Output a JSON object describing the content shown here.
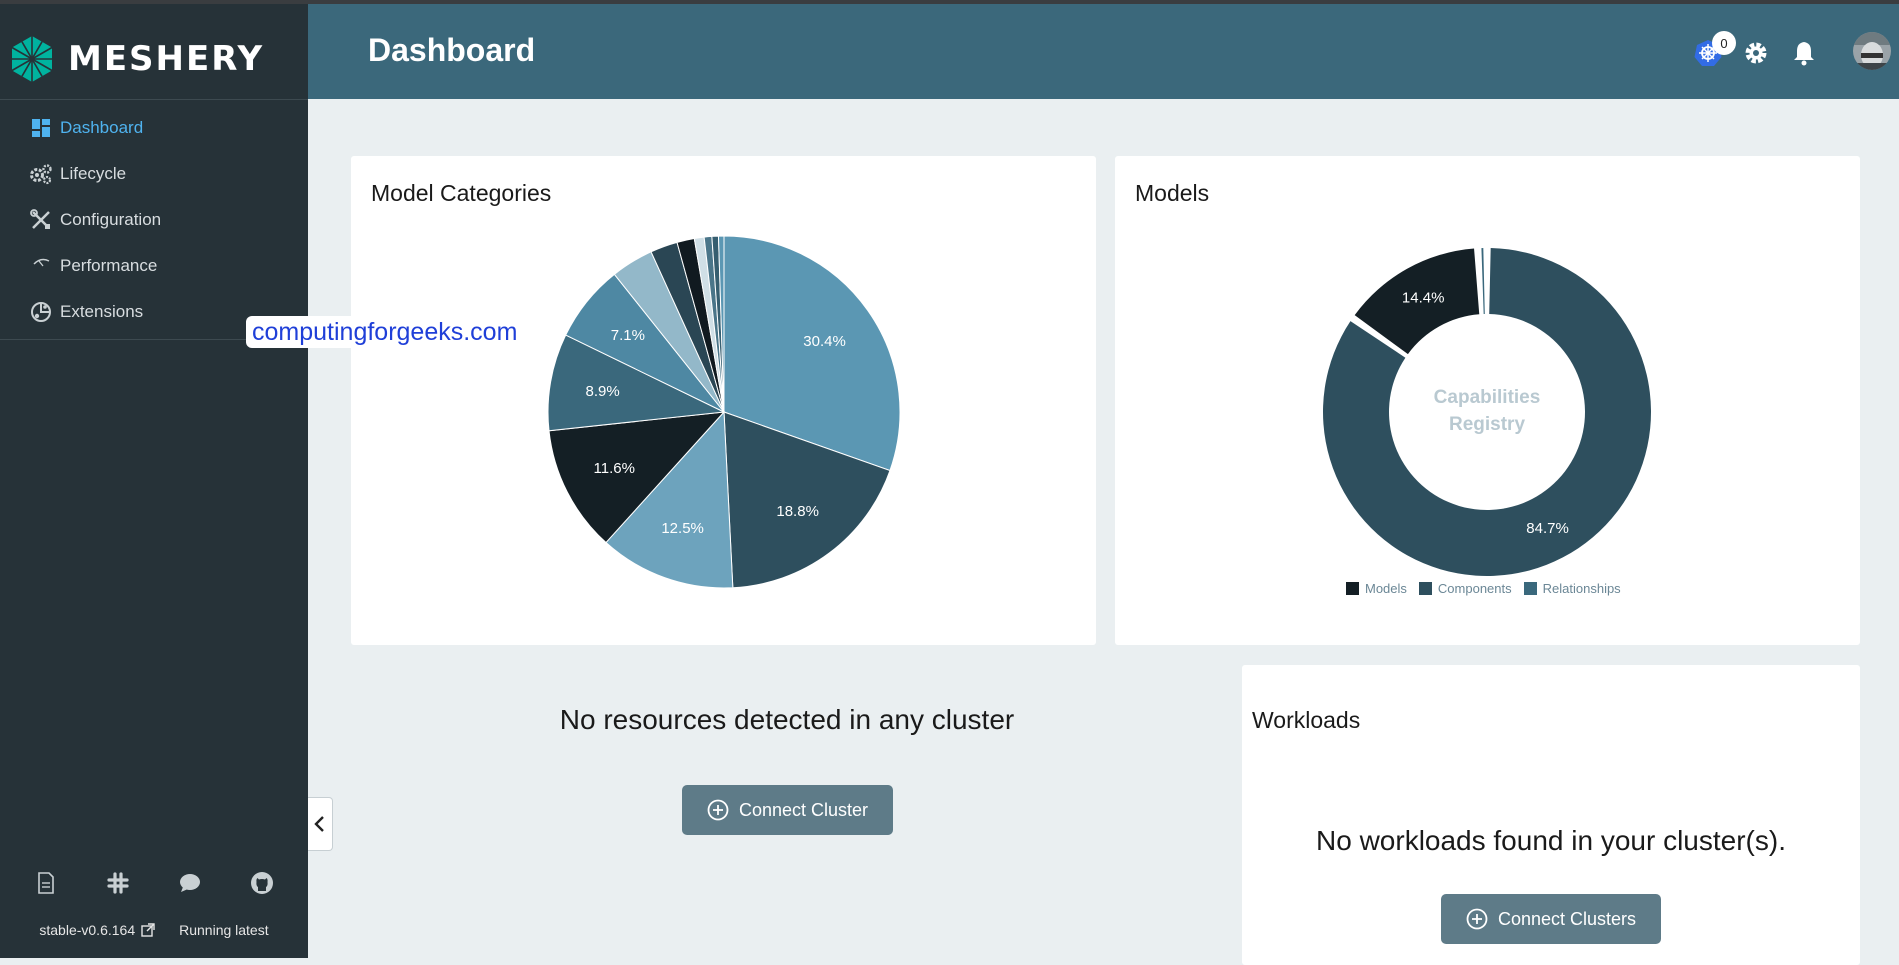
{
  "app": {
    "name": "MESHERY"
  },
  "colors": {
    "sidebar_bg": "#263238",
    "header_bg": "#3b687b",
    "accent": "#4fb3ef",
    "page_bg": "#eaeff1",
    "button": "#5e7b88"
  },
  "sidebar": {
    "items": [
      {
        "label": "Dashboard",
        "icon": "dashboard-icon",
        "active": true
      },
      {
        "label": "Lifecycle",
        "icon": "gears-icon",
        "active": false
      },
      {
        "label": "Configuration",
        "icon": "tools-icon",
        "active": false
      },
      {
        "label": "Performance",
        "icon": "gauge-icon",
        "active": false
      },
      {
        "label": "Extensions",
        "icon": "puzzle-icon",
        "active": false
      }
    ],
    "footer_icons": [
      "docs-icon",
      "slack-icon",
      "chat-icon",
      "github-icon"
    ],
    "version": "stable-v0.6.164",
    "status": "Running latest"
  },
  "header": {
    "title": "Dashboard",
    "k8s_badge_count": "0",
    "icons": [
      "kubernetes-icon",
      "settings-gear-icon",
      "notification-bell-icon",
      "user-avatar"
    ]
  },
  "watermark": "computingforgeeks.com",
  "model_categories": {
    "title": "Model Categories",
    "chart_data": {
      "type": "pie",
      "slices": [
        {
          "value": 30.4,
          "label": "30.4%",
          "color": "#5b97b3"
        },
        {
          "value": 18.8,
          "label": "18.8%",
          "color": "#2e4f5e"
        },
        {
          "value": 12.5,
          "label": "12.5%",
          "color": "#6da3bd"
        },
        {
          "value": 11.6,
          "label": "11.6%",
          "color": "#141f25"
        },
        {
          "value": 8.9,
          "label": "8.9%",
          "color": "#3a687c"
        },
        {
          "value": 7.1,
          "label": "7.1%",
          "color": "#4e88a3"
        },
        {
          "value": 3.9,
          "label": "",
          "color": "#93b8c9"
        },
        {
          "value": 2.5,
          "label": "",
          "color": "#2a4654"
        },
        {
          "value": 1.6,
          "label": "",
          "color": "#111a20"
        },
        {
          "value": 0.9,
          "label": "",
          "color": "#d0dfe6"
        },
        {
          "value": 0.7,
          "label": "",
          "color": "#4a7589"
        },
        {
          "value": 0.6,
          "label": "",
          "color": "#365e70"
        },
        {
          "value": 0.5,
          "label": "",
          "color": "#5b97b3"
        }
      ]
    }
  },
  "models": {
    "title": "Models",
    "center_line1": "Capabilities",
    "center_line2": "Registry",
    "legend": [
      {
        "label": "Models",
        "color": "#141f25"
      },
      {
        "label": "Components",
        "color": "#2e4f5e"
      },
      {
        "label": "Relationships",
        "color": "#3a687c"
      }
    ],
    "chart_data": {
      "type": "pie",
      "donut": true,
      "series": [
        {
          "name": "Components",
          "value": 84.7,
          "label": "84.7%",
          "color": "#2e4f5e"
        },
        {
          "name": "Models",
          "value": 14.4,
          "label": "14.4%",
          "color": "#141f25"
        },
        {
          "name": "Relationships",
          "value": 0.9,
          "label": "",
          "color": "#3a687c"
        }
      ]
    }
  },
  "resources": {
    "empty_message": "No resources detected in any cluster",
    "button_label": "Connect Cluster"
  },
  "workloads": {
    "title": "Workloads",
    "empty_message": "No workloads found in your cluster(s).",
    "button_label": "Connect Clusters"
  }
}
